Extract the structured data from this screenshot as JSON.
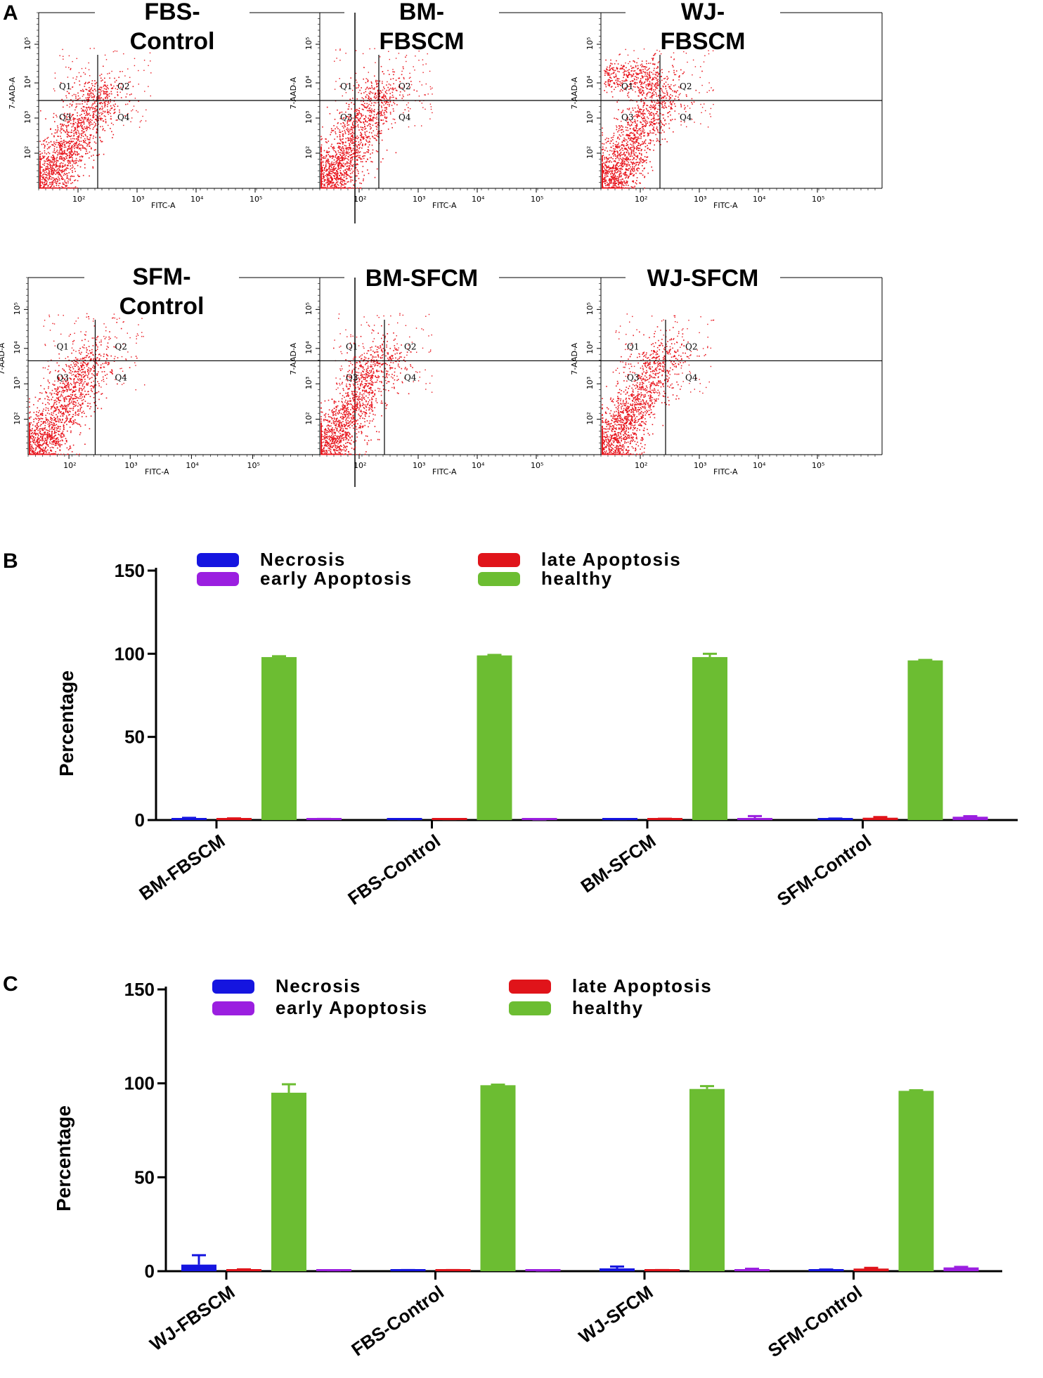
{
  "panel_letters": {
    "a": "A",
    "b": "B",
    "c": "C"
  },
  "flow": {
    "x_label": "FITC-A",
    "y_label": "7-AAD-A",
    "x_ticks": [
      "10²",
      "10³",
      "10⁴",
      "10⁵"
    ],
    "y_ticks": [
      "10²",
      "10³",
      "10⁴",
      "10⁵"
    ],
    "quadrants": [
      "Q1",
      "Q2",
      "Q3",
      "Q4"
    ],
    "dot_color": "#e8141c",
    "plots": [
      {
        "title_line1": "FBS-",
        "title_line2": "Control"
      },
      {
        "title_line1": "BM-",
        "title_line2": "FBSCM"
      },
      {
        "title_line1": "WJ-",
        "title_line2": "FBSCM"
      },
      {
        "title_line1": "SFM-",
        "title_line2": "Control"
      },
      {
        "title_line1": "BM-SFCM",
        "title_line2": ""
      },
      {
        "title_line1": "WJ-SFCM",
        "title_line2": ""
      }
    ]
  },
  "chart_data": [
    {
      "type": "bar",
      "panel": "B",
      "ylabel": "Percentage",
      "ylim": [
        0,
        150
      ],
      "yticks": [
        0,
        50,
        100,
        150
      ],
      "categories": [
        "BM-FBSCM",
        "FBS-Control",
        "BM-SFCM",
        "SFM-Control"
      ],
      "series": [
        {
          "name": "Necrosis",
          "color": "#1515e0",
          "values": [
            0.8,
            0.4,
            0.4,
            0.6
          ],
          "errors": [
            0.5,
            0.2,
            0.2,
            0.3
          ]
        },
        {
          "name": "late Apoptosis",
          "color": "#e0141a",
          "values": [
            0.7,
            0.4,
            0.6,
            1.4
          ],
          "errors": [
            0.3,
            0.2,
            0.2,
            0.4
          ]
        },
        {
          "name": "healthy",
          "color": "#6cbd32",
          "values": [
            98.0,
            99.0,
            98.0,
            96.0
          ],
          "errors": [
            0.5,
            0.3,
            2.0,
            0.3
          ]
        },
        {
          "name": "early Apoptosis",
          "color": "#9b1fe0",
          "values": [
            0.5,
            0.3,
            1.2,
            2.0
          ],
          "errors": [
            0.2,
            0.1,
            1.2,
            0.3
          ]
        }
      ],
      "legend": [
        "Necrosis",
        "late Apoptosis",
        "early Apoptosis",
        "healthy"
      ]
    },
    {
      "type": "bar",
      "panel": "C",
      "ylabel": "Percentage",
      "ylim": [
        0,
        150
      ],
      "yticks": [
        0,
        50,
        100,
        150
      ],
      "categories": [
        "WJ-FBSCM",
        "FBS-Control",
        "WJ-SFCM",
        "SFM-Control"
      ],
      "series": [
        {
          "name": "Necrosis",
          "color": "#1515e0",
          "values": [
            3.5,
            0.4,
            1.5,
            0.6
          ],
          "errors": [
            5.0,
            0.2,
            1.0,
            0.3
          ]
        },
        {
          "name": "late Apoptosis",
          "color": "#e0141a",
          "values": [
            0.7,
            0.4,
            0.4,
            1.4
          ],
          "errors": [
            0.3,
            0.2,
            0.2,
            0.4
          ]
        },
        {
          "name": "healthy",
          "color": "#6cbd32",
          "values": [
            95.0,
            99.0,
            97.0,
            96.0
          ],
          "errors": [
            4.5,
            0.3,
            1.5,
            0.3
          ]
        },
        {
          "name": "early Apoptosis",
          "color": "#9b1fe0",
          "values": [
            0.3,
            0.3,
            0.9,
            2.0
          ],
          "errors": [
            0.2,
            0.1,
            0.4,
            0.3
          ]
        }
      ],
      "legend": [
        "Necrosis",
        "late Apoptosis",
        "early Apoptosis",
        "healthy"
      ]
    }
  ]
}
